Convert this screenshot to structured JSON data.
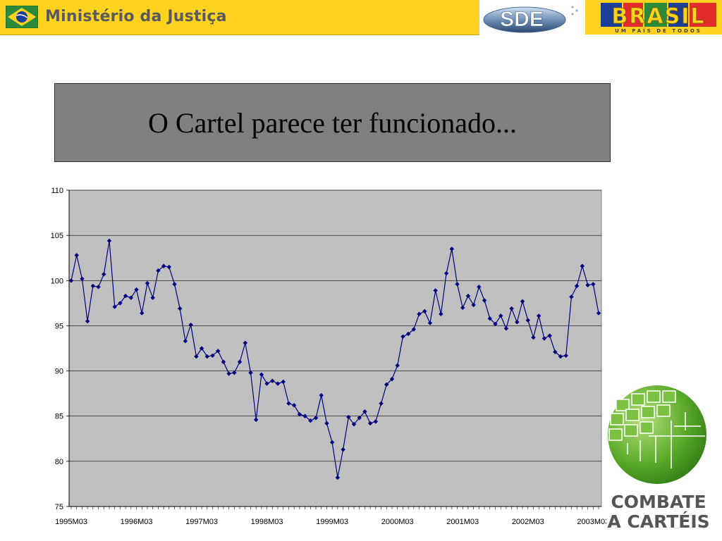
{
  "header": {
    "ministry_label": "Ministério da Justiça",
    "sde_label": "SDE",
    "brasil_label": "BRASIL",
    "brasil_tagline": "UM PAÍS DE TODOS"
  },
  "slide": {
    "title": "O Cartel parece ter funcionado..."
  },
  "logo": {
    "line1": "COMBATE",
    "line2": "A CARTÉIS"
  },
  "colors": {
    "series": "#000080",
    "plot_bg": "#c0c0c0",
    "banner": "#ffd21f"
  },
  "chart_data": {
    "type": "line",
    "title": "",
    "xlabel": "",
    "ylabel": "",
    "ylim": [
      75,
      110
    ],
    "yticks": [
      75,
      80,
      85,
      90,
      95,
      100,
      105,
      110
    ],
    "grid": true,
    "legend": "none",
    "xtick_labels": [
      "1995M03",
      "1996M03",
      "1997M03",
      "1998M03",
      "1999M03",
      "2000M03",
      "2001M03",
      "2002M03",
      "2003M03"
    ],
    "x_start": "1995M03",
    "x_frequency": "monthly",
    "series": [
      {
        "values": [
          100.0,
          102.8,
          100.2,
          95.5,
          99.4,
          99.3,
          100.7,
          104.4,
          97.1,
          97.5,
          98.3,
          98.1,
          99.0,
          96.4,
          99.7,
          98.1,
          101.1,
          101.6,
          101.5,
          99.6,
          96.9,
          93.3,
          95.1,
          91.6,
          92.5,
          91.6,
          91.7,
          92.2,
          91.0,
          89.7,
          89.8,
          91.0,
          93.1,
          89.8,
          84.6,
          89.6,
          88.6,
          88.9,
          88.6,
          88.8,
          86.4,
          86.2,
          85.2,
          85.0,
          84.5,
          84.8,
          87.3,
          84.2,
          82.1,
          78.2,
          81.3,
          84.9,
          84.1,
          84.8,
          85.5,
          84.2,
          84.4,
          86.4,
          88.5,
          89.1,
          90.6,
          93.8,
          94.1,
          94.6,
          96.3,
          96.6,
          95.3,
          98.9,
          96.3,
          100.8,
          103.5,
          99.6,
          97.0,
          98.3,
          97.3,
          99.3,
          97.8,
          95.8,
          95.2,
          96.1,
          94.7,
          96.9,
          95.4,
          97.7,
          95.6,
          93.7,
          96.1,
          93.6,
          93.9,
          92.1,
          91.6,
          91.7,
          98.2,
          99.4,
          101.6,
          99.5,
          99.6,
          96.4
        ]
      }
    ]
  }
}
